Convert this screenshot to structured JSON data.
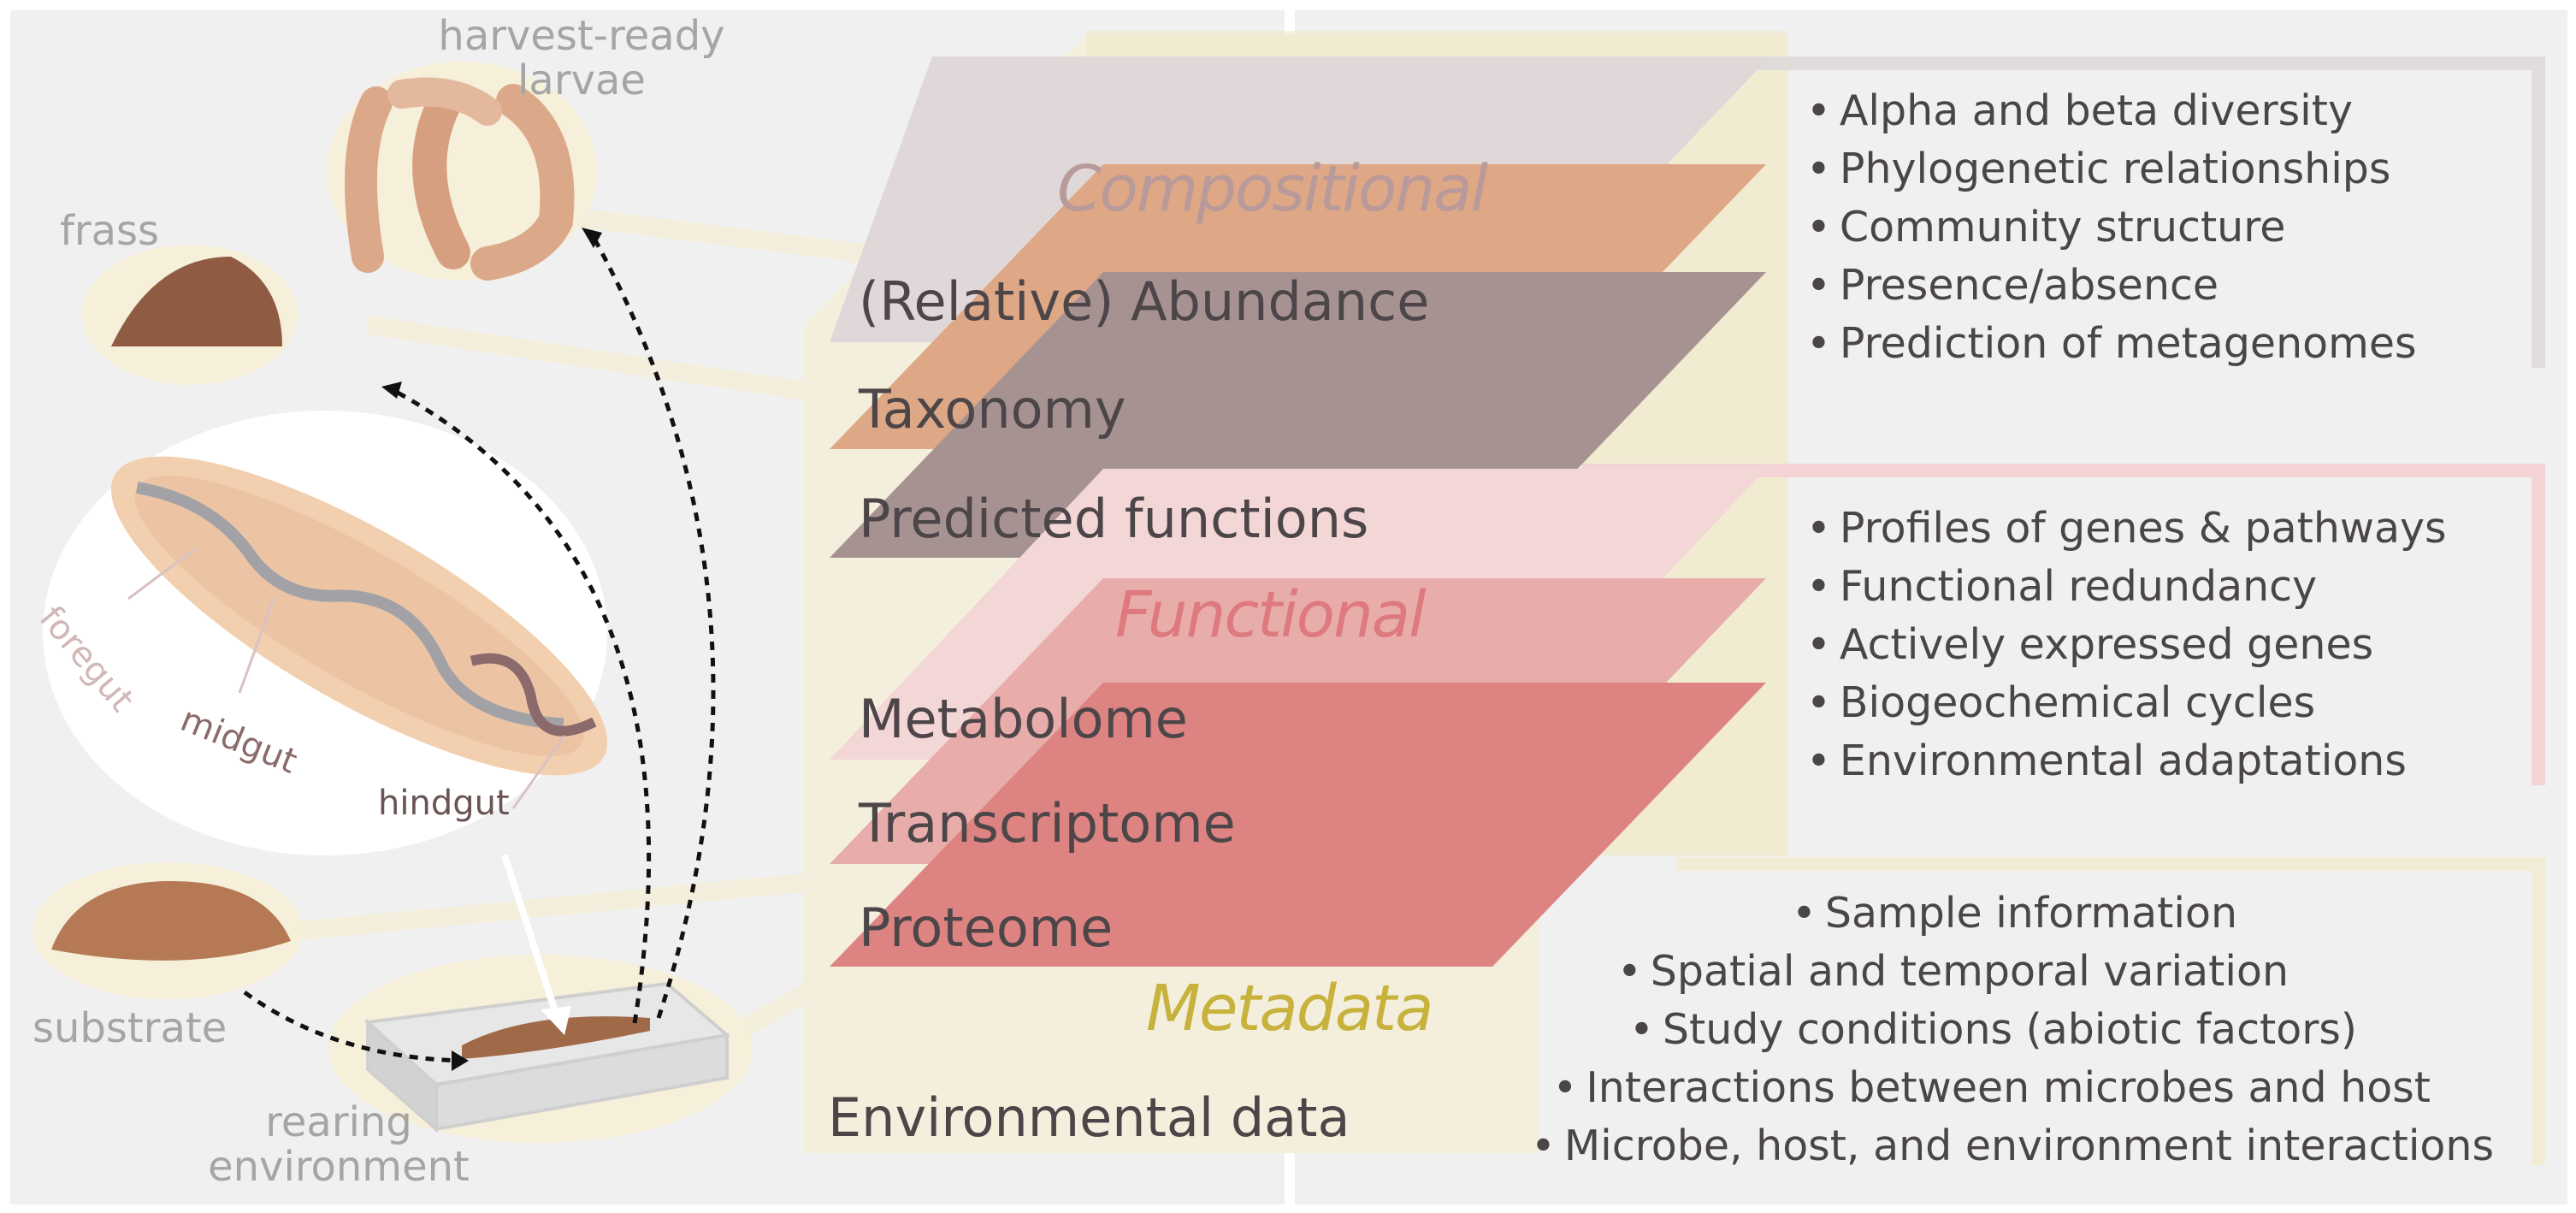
{
  "left_panel": {
    "labels": {
      "harvest_ready": "harvest-ready\nlarvae",
      "frass": "frass",
      "substrate": "substrate",
      "rearing": "rearing\nenvironment"
    },
    "gut_labels": {
      "foregut": "foregut",
      "midgut": "midgut",
      "hindgut": "hindgut"
    }
  },
  "layers": {
    "categories": {
      "compositional": "Compositional",
      "functional": "Functional",
      "metadata": "Metadata"
    },
    "items": [
      {
        "label": "(Relative) Abundance",
        "color": "#e0d8d8"
      },
      {
        "label": "Taxonomy",
        "color": "#dea785"
      },
      {
        "label": "Predicted functions",
        "color": "#a79292"
      },
      {
        "label": "Metabolome",
        "color": "#f3d6d6"
      },
      {
        "label": "Transcriptome",
        "color": "#e8acab"
      },
      {
        "label": "Proteome",
        "color": "#dd8381"
      },
      {
        "label": "Environmental data",
        "color": "#f2ecd6"
      }
    ]
  },
  "right_panel": {
    "compositional_points": [
      "Alpha and beta diversity",
      "Phylogenetic relationships",
      "Community structure",
      "Presence/absence",
      "Prediction of metagenomes"
    ],
    "functional_points": [
      "Profiles of genes & pathways",
      "Functional redundancy",
      "Actively expressed genes",
      "Biogeochemical cycles",
      "Environmental adaptations"
    ],
    "metadata_points": [
      "Sample information",
      "Spatial and temporal variation",
      "Study conditions (abiotic factors)",
      "Interactions between microbes and host",
      "Microbe, host, and environment interactions"
    ]
  },
  "colors": {
    "compositional_text": "#b89a9a",
    "functional_text": "#de7a7f",
    "metadata_text": "#c8b23e",
    "compositional_bracket": "#e1dcdc",
    "functional_bracket": "#f3d3d3",
    "metadata_bracket": "#f2ecd6",
    "panel_bg": "#f0f0f0"
  }
}
